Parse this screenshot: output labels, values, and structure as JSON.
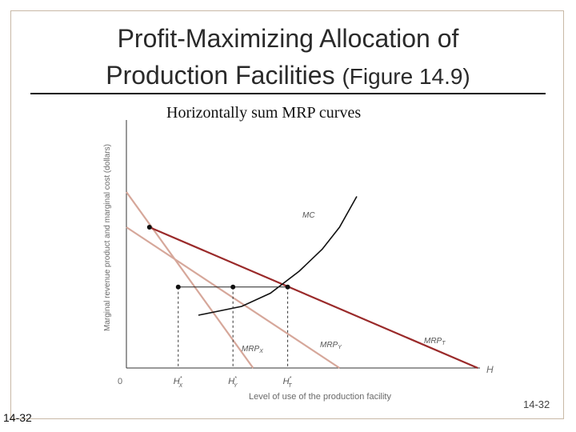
{
  "slide": {
    "title_line1": "Profit-Maximizing Allocation of",
    "title_line2": "Production Facilities",
    "title_figure": "(Figure 14.9)",
    "subtitle": "Horizontally sum MRP curves",
    "slide_number_right": "14-32",
    "slide_number_left": "14-32"
  },
  "chart_data": {
    "type": "line",
    "ylabel": "Marginal revenue product and marginal cost (dollars)",
    "xlabel": "Level of use of the production facility",
    "x_axis_end_label": "H",
    "origin_label": "0",
    "x_ticks": [
      "H*X",
      "H*Y",
      "H*T"
    ],
    "series": [
      {
        "name": "MRPX",
        "points": [
          [
            0.0,
            2.0
          ],
          [
            0.44,
            0.0
          ]
        ]
      },
      {
        "name": "MRPY",
        "points": [
          [
            0.0,
            1.6
          ],
          [
            0.74,
            0.0
          ]
        ]
      },
      {
        "name": "MRPT",
        "points": [
          [
            0.08,
            1.6
          ],
          [
            1.22,
            0.0
          ]
        ]
      },
      {
        "name": "MC",
        "points": [
          [
            0.25,
            0.6
          ],
          [
            0.4,
            0.7
          ],
          [
            0.5,
            0.85
          ],
          [
            0.6,
            1.1
          ],
          [
            0.68,
            1.35
          ],
          [
            0.74,
            1.6
          ],
          [
            0.8,
            1.95
          ]
        ]
      }
    ],
    "equilibrium_dots": [
      {
        "label": "MRPX",
        "x": 0.18,
        "y": 0.92
      },
      {
        "label": "MRPY",
        "x": 0.37,
        "y": 0.92
      },
      {
        "label": "MRPT",
        "x": 0.56,
        "y": 0.92
      },
      {
        "label": "MRPT",
        "x": 0.08,
        "y": 1.6
      }
    ],
    "series_colors": {
      "MRPX": "#d6a79a",
      "MRPY": "#d6a79a",
      "MRPT": "#9a2a2a",
      "MC": "#111111"
    }
  }
}
